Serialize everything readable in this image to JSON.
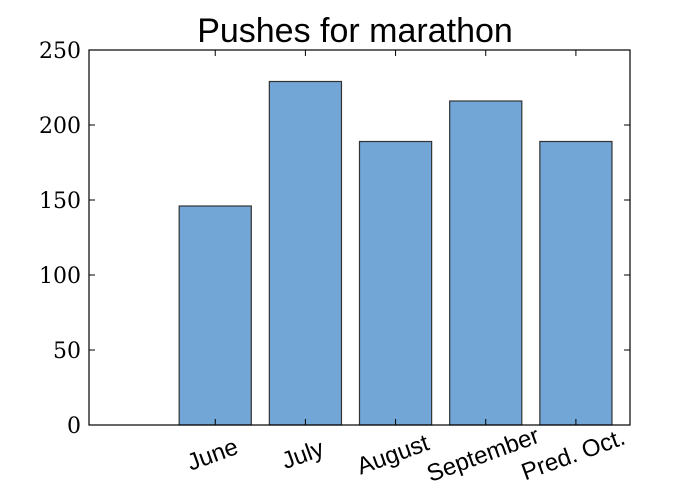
{
  "chart_data": {
    "type": "bar",
    "title": "Pushes for marathon",
    "xlabel": "",
    "ylabel": "",
    "categories": [
      "June",
      "July",
      "August",
      "September",
      "Pred. Oct."
    ],
    "values": [
      146,
      229,
      189,
      216,
      189
    ],
    "ylim": [
      0,
      250
    ],
    "yticks": [
      0,
      50,
      100,
      150,
      200,
      250
    ],
    "grid": false,
    "bar_color": "#72a6d6",
    "bar_edge_color": "#333333"
  }
}
